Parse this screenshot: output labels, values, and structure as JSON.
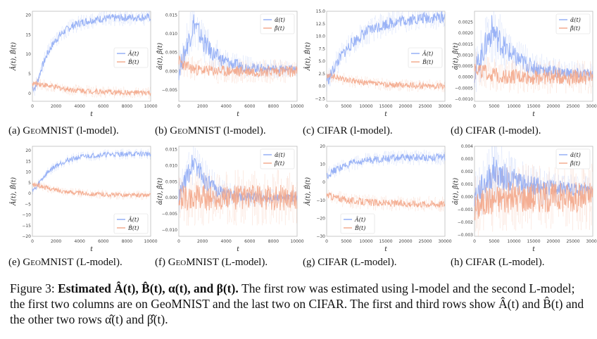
{
  "colors": {
    "blue": "#8fabf5",
    "orange": "#f3a688",
    "axis": "#bbbbbb"
  },
  "panels": [
    {
      "id": "a",
      "caption_prefix": "(a) ",
      "caption_dataset": "GeoMNIST",
      "caption_model": " (l-model).",
      "xlabel": "t",
      "ylabel": "Â(t), B̂(t)",
      "legend": [
        "Â(t)",
        "B̂(t)"
      ],
      "legend_pos": "center-right",
      "xticks": [
        "0",
        "2000",
        "4000",
        "6000",
        "8000",
        "10000"
      ],
      "yticks": [
        "20",
        "15",
        "10",
        "5",
        "0"
      ],
      "chart_data": {
        "type": "line",
        "xlim": [
          0,
          10000
        ],
        "ylim": [
          -2,
          21
        ],
        "series": [
          {
            "name": "Â(t)",
            "shape": "saturating",
            "start": 1.5,
            "end": 19.5,
            "rise_at": 1000,
            "rate": 1500,
            "noise": 1.0
          },
          {
            "name": "B̂(t)",
            "shape": "decay",
            "start": 2.5,
            "end": 0,
            "peak_at": 1200,
            "rate": 3000,
            "noise": 0.7
          }
        ]
      }
    },
    {
      "id": "b",
      "caption_prefix": "(b) ",
      "caption_dataset": "GeoMNIST",
      "caption_model": " (l-model).",
      "xlabel": "t",
      "ylabel": "α̂(t), β̂(t)",
      "legend": [
        "α̂(t)",
        "β̂(t)"
      ],
      "legend_pos": "top-right",
      "xticks": [
        "0",
        "2000",
        "4000",
        "6000",
        "8000",
        "10000"
      ],
      "yticks": [
        "0.015",
        "0.010",
        "0.005",
        "0.000",
        "−0.005"
      ],
      "chart_data": {
        "type": "line",
        "xlim": [
          0,
          10000
        ],
        "ylim": [
          -0.008,
          0.016
        ],
        "series": [
          {
            "name": "α̂(t)",
            "shape": "spike",
            "start": 0.0,
            "peak": 0.013,
            "peak_at": 1300,
            "end": 0.0005,
            "rate": 1500,
            "noise": 0.0025
          },
          {
            "name": "β̂(t)",
            "shape": "noise",
            "start": 0.003,
            "end": 0.0,
            "rate": 800,
            "noise": 0.0015
          }
        ]
      }
    },
    {
      "id": "c",
      "caption_prefix": "(c) ",
      "caption_dataset": "CIFAR",
      "caption_model": " (l-model).",
      "xlabel": "t",
      "ylabel": "Â(t), B̂(t)",
      "legend": [
        "Â(t)",
        "B̂(t)"
      ],
      "legend_pos": "center-right",
      "xticks": [
        "0",
        "5000",
        "10000",
        "15000",
        "20000",
        "25000",
        "30000"
      ],
      "yticks": [
        "15.0",
        "12.5",
        "10.0",
        "7.5",
        "5.0",
        "2.5",
        "0.0",
        "−2.5"
      ],
      "chart_data": {
        "type": "line",
        "xlim": [
          0,
          30000
        ],
        "ylim": [
          -3,
          15
        ],
        "series": [
          {
            "name": "Â(t)",
            "shape": "saturating",
            "start": 1.5,
            "end": 14,
            "rise_at": 2000,
            "rate": 7000,
            "noise": 1.2
          },
          {
            "name": "B̂(t)",
            "shape": "decay",
            "start": 2.0,
            "end": 0,
            "peak_at": 3000,
            "rate": 8000,
            "noise": 0.6
          }
        ]
      }
    },
    {
      "id": "d",
      "caption_prefix": "(d) ",
      "caption_dataset": "CIFAR",
      "caption_model": " (l-model).",
      "xlabel": "t",
      "ylabel": "α̂(t), β̂(t)",
      "legend": [
        "α̂(t)",
        "β̂(t)"
      ],
      "legend_pos": "top-right",
      "xticks": [
        "0",
        "5000",
        "10000",
        "15000",
        "20000",
        "25000",
        "30000"
      ],
      "yticks": [
        "0.0025",
        "0.0020",
        "0.0015",
        "0.0010",
        "0.0005",
        "0.0000",
        "−0.0005",
        "−0.0010"
      ],
      "chart_data": {
        "type": "line",
        "xlim": [
          0,
          30000
        ],
        "ylim": [
          -0.0011,
          0.003
        ],
        "series": [
          {
            "name": "α̂(t)",
            "shape": "spike",
            "start": 0.0002,
            "peak": 0.0022,
            "peak_at": 4500,
            "end": 0.0001,
            "rate": 6000,
            "noise": 0.0005
          },
          {
            "name": "β̂(t)",
            "shape": "noise",
            "start": 0.0005,
            "end": 0.0,
            "rate": 3000,
            "noise": 0.00035
          }
        ]
      }
    },
    {
      "id": "e",
      "caption_prefix": "(e) ",
      "caption_dataset": "GeoMNIST",
      "caption_model": " (L-model).",
      "xlabel": "t",
      "ylabel": "Â(t), B̂(t)",
      "legend": [
        "Â(t)",
        "B̂(t)"
      ],
      "legend_pos": "bottom-right",
      "xticks": [
        "0",
        "2000",
        "4000",
        "6000",
        "8000",
        "10000"
      ],
      "yticks": [
        "20",
        "15",
        "10",
        "5",
        "0",
        "−5",
        "−10",
        "−15",
        "−20"
      ],
      "chart_data": {
        "type": "line",
        "xlim": [
          0,
          10000
        ],
        "ylim": [
          -20,
          22
        ],
        "series": [
          {
            "name": "Â(t)",
            "shape": "saturating",
            "start": 2,
            "end": 18.5,
            "rise_at": 900,
            "rate": 1600,
            "noise": 1.2
          },
          {
            "name": "B̂(t)",
            "shape": "decay",
            "start": 4,
            "end": -1,
            "peak_at": 800,
            "rate": 2500,
            "noise": 1.0
          }
        ]
      }
    },
    {
      "id": "f",
      "caption_prefix": "(f) ",
      "caption_dataset": "GeoMNIST",
      "caption_model": " (L-model).",
      "xlabel": "t",
      "ylabel": "α̂(t), β̂(t)",
      "legend": [
        "α̂(t)",
        "β̂(t)"
      ],
      "legend_pos": "top-right",
      "xticks": [
        "0",
        "2000",
        "4000",
        "6000",
        "8000",
        "10000"
      ],
      "yticks": [
        "0.015",
        "0.010",
        "0.005",
        "0.000",
        "−0.005",
        "−0.010"
      ],
      "chart_data": {
        "type": "line",
        "xlim": [
          0,
          10000
        ],
        "ylim": [
          -0.012,
          0.016
        ],
        "series": [
          {
            "name": "α̂(t)",
            "shape": "spike",
            "start": 0.0,
            "peak": 0.012,
            "peak_at": 1300,
            "end": 0.0,
            "rate": 1200,
            "noise": 0.003
          },
          {
            "name": "β̂(t)",
            "shape": "noise",
            "start": 0.0,
            "end": 0.0,
            "rate": 2000,
            "noise": 0.004
          }
        ]
      }
    },
    {
      "id": "g",
      "caption_prefix": "(g) ",
      "caption_dataset": "CIFAR",
      "caption_model": " (L-model).",
      "xlabel": "t",
      "ylabel": "Â(t), B̂(t)",
      "legend": [
        "Â(t)",
        "B̂(t)"
      ],
      "legend_pos": "bottom-left",
      "xticks": [
        "0",
        "5000",
        "10000",
        "15000",
        "20000",
        "25000",
        "30000"
      ],
      "yticks": [
        "20",
        "10",
        "0",
        "−10",
        "−20",
        "−30"
      ],
      "chart_data": {
        "type": "line",
        "xlim": [
          0,
          30000
        ],
        "ylim": [
          -30,
          20
        ],
        "series": [
          {
            "name": "Â(t)",
            "shape": "saturating",
            "start": 4,
            "end": 14,
            "rise_at": 1000,
            "rate": 6000,
            "noise": 2.0
          },
          {
            "name": "B̂(t)",
            "shape": "decay",
            "start": -7,
            "end": -12,
            "peak_at": 500,
            "rate": 6000,
            "noise": 2.0
          }
        ]
      }
    },
    {
      "id": "h",
      "caption_prefix": "(h) ",
      "caption_dataset": "CIFAR",
      "caption_model": " (L-model).",
      "xlabel": "t",
      "ylabel": "α̂(t), β̂(t)",
      "legend": [
        "α̂(t)",
        "β̂(t)"
      ],
      "legend_pos": "top-right",
      "xticks": [
        "0",
        "5000",
        "10000",
        "15000",
        "20000",
        "25000",
        "30000"
      ],
      "yticks": [
        "0.004",
        "0.003",
        "0.002",
        "0.001",
        "0.000",
        "−0.001",
        "−0.002",
        "−0.003"
      ],
      "chart_data": {
        "type": "line",
        "xlim": [
          0,
          30000
        ],
        "ylim": [
          -0.0031,
          0.004
        ],
        "series": [
          {
            "name": "α̂(t)",
            "shape": "spike",
            "start": 0.0,
            "peak": 0.002,
            "peak_at": 5000,
            "end": 0.0005,
            "rate": 8000,
            "noise": 0.0009
          },
          {
            "name": "β̂(t)",
            "shape": "noise",
            "start": -0.001,
            "end": 0.0,
            "rate": 3000,
            "noise": 0.0012
          }
        ]
      }
    }
  ],
  "caption": {
    "fig_label": "Figure 3:",
    "bold_title": "Estimated Â(t), B̂(t), α(t), and β(t).",
    "body": "The first row was estimated using l-model and the second L-model; the first two columns are on GeoMNIST and the last two on CIFAR. The first and third rows show Â(t) and B̂(t) and the other two rows α̂(t) and β̂(t)."
  }
}
